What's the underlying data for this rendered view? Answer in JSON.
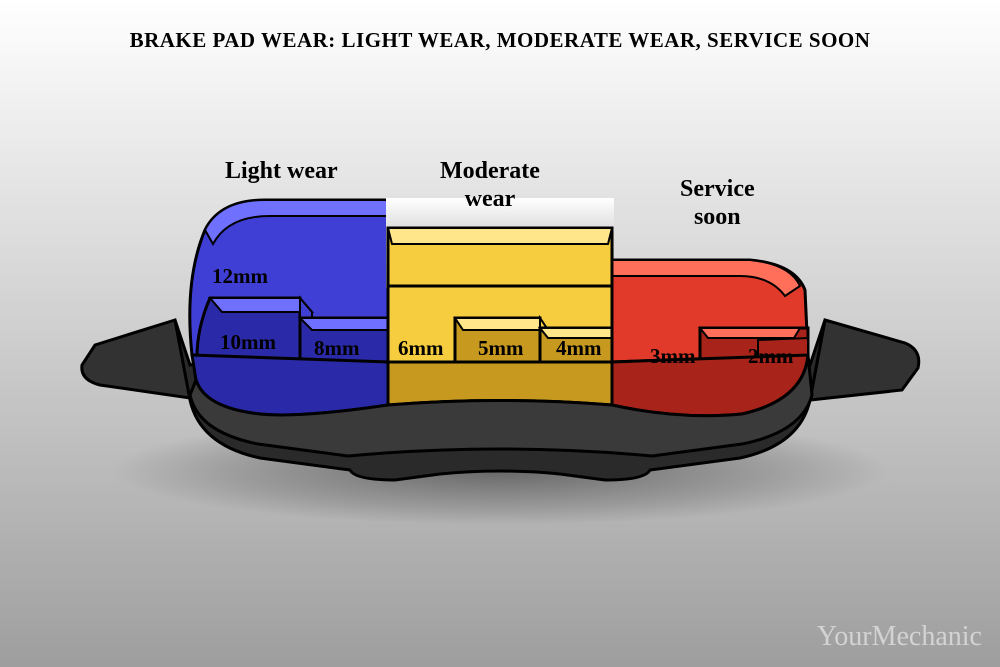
{
  "title": "BRAKE PAD WEAR:  LIGHT WEAR, MODERATE WEAR, SERVICE SOON",
  "title_fontsize": 21,
  "title_color": "#000000",
  "background": {
    "top_color": "#ffffff",
    "bottom_color": "#9e9e9e"
  },
  "watermark": "YourMechanic",
  "watermark_color": "#d9d9d9",
  "watermark_fontsize": 28,
  "diagram": {
    "type": "infographic",
    "backing_plate_fill": "#323232",
    "backing_plate_stroke": "#000000",
    "pad_base_fill": "#4b4b4b",
    "stroke_width_main": 3,
    "label_fontsize": 24,
    "mm_fontsize": 21,
    "label_color": "#000000",
    "sections": [
      {
        "id": "light-wear",
        "label": "Light wear",
        "fill": "#3f3fd6",
        "fill_dark": "#2a2aa8",
        "fill_light": "#7070ff",
        "steps": [
          {
            "label": "12mm",
            "mm": 12
          },
          {
            "label": "10mm",
            "mm": 10
          },
          {
            "label": "8mm",
            "mm": 8
          }
        ]
      },
      {
        "id": "moderate-wear",
        "label": "Moderate\nwear",
        "fill": "#f5cd3e",
        "fill_dark": "#c79a1f",
        "fill_light": "#ffe68a",
        "steps": [
          {
            "label": "6mm",
            "mm": 6
          },
          {
            "label": "5mm",
            "mm": 5
          },
          {
            "label": "4mm",
            "mm": 4
          }
        ]
      },
      {
        "id": "service-soon",
        "label": "Service\nsoon",
        "fill": "#e23a2a",
        "fill_dark": "#a8241a",
        "fill_light": "#ff6f5a",
        "steps": [
          {
            "label": "3mm",
            "mm": 3
          },
          {
            "label": "2mm",
            "mm": 2
          }
        ]
      }
    ]
  }
}
